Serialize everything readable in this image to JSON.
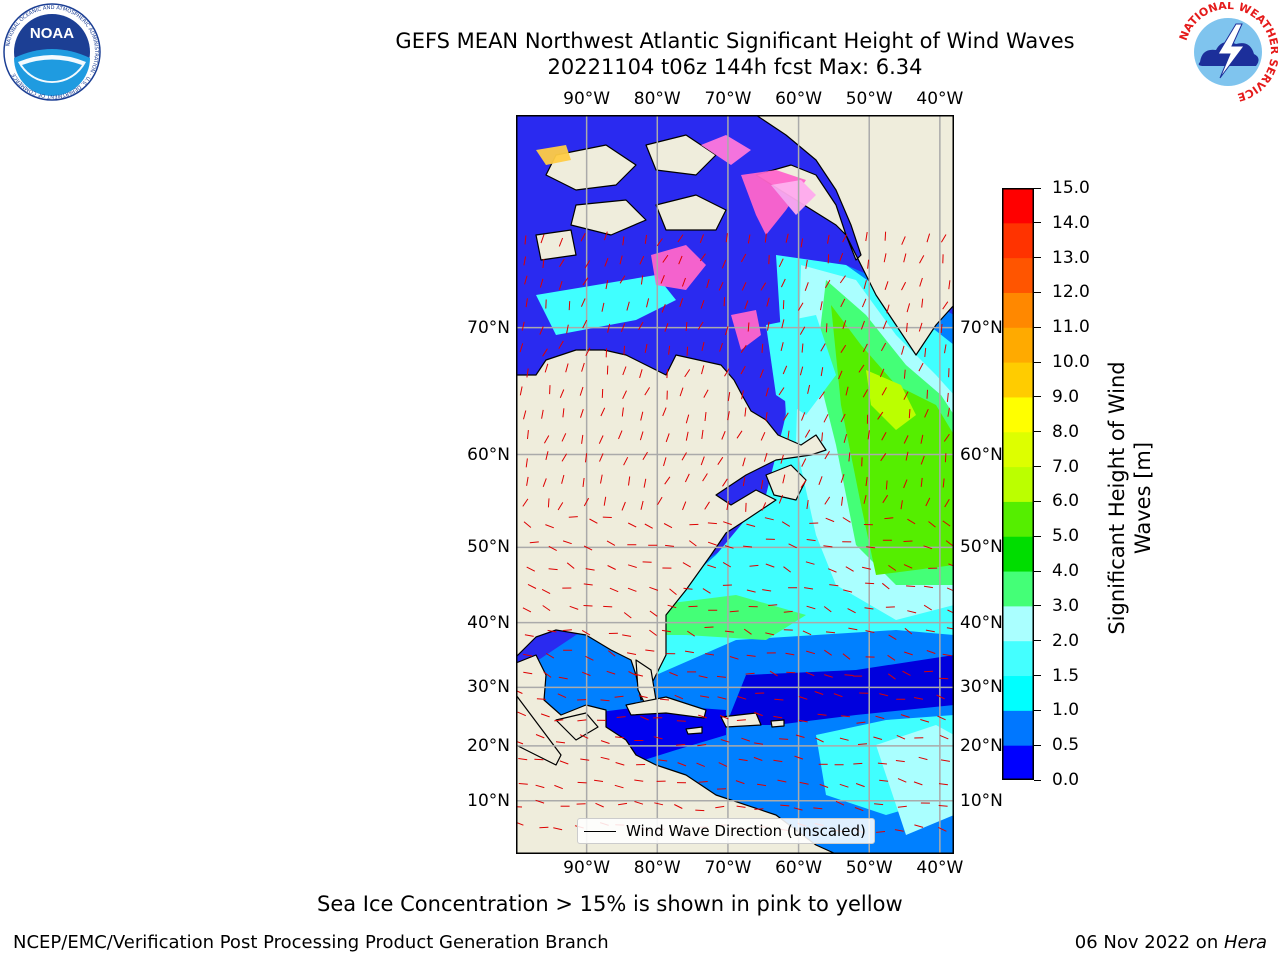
{
  "title": {
    "line1": "GEFS MEAN Northwest Atlantic Significant Height of Wind Waves",
    "line2": "20221104 t06z 144h fcst   Max: 6.34"
  },
  "logos": {
    "left": {
      "text": "NOAA",
      "ring_text": "NATIONAL OCEANIC AND ATMOSPHERIC ADMINISTRATION · U.S. DEPARTMENT OF COMMERCE"
    },
    "right": {
      "ring_text": "NATIONAL WEATHER SERVICE"
    }
  },
  "map": {
    "lon_labels": [
      "90°W",
      "80°W",
      "70°W",
      "60°W",
      "50°W",
      "40°W"
    ],
    "lon_values": [
      -90,
      -80,
      -70,
      -60,
      -50,
      -40
    ],
    "lat_labels": [
      "70°N",
      "60°N",
      "50°N",
      "40°N",
      "30°N",
      "20°N",
      "10°N"
    ],
    "lat_values": [
      70,
      60,
      50,
      40,
      30,
      20,
      10
    ],
    "lon_range": [
      -100,
      -38
    ],
    "lat_range": [
      0,
      80
    ],
    "gridlines": true,
    "projection": "mercator",
    "colors": {
      "land": "#efeddc",
      "coast": "#000000",
      "grid": "#aaaaaa",
      "vector": "#dd0000"
    }
  },
  "legend": {
    "label": "Wind Wave Direction (unscaled)",
    "placement": "lower-center"
  },
  "colorbar": {
    "label": "Significant Height of Wind Waves [m]",
    "ticks": [
      "0.0",
      "0.5",
      "1.0",
      "1.5",
      "2.0",
      "3.0",
      "4.0",
      "5.0",
      "6.0",
      "7.0",
      "8.0",
      "9.0",
      "10.0",
      "11.0",
      "12.0",
      "13.0",
      "14.0",
      "15.0"
    ],
    "colors": [
      "#0000ff",
      "#0077ff",
      "#00ffff",
      "#44ffff",
      "#aaffff",
      "#44ff77",
      "#00dd00",
      "#55ee00",
      "#bbff00",
      "#ddff00",
      "#ffff00",
      "#ffcc00",
      "#ffaa00",
      "#ff8800",
      "#ff5500",
      "#ff3300",
      "#ff0000"
    ]
  },
  "note": "Sea Ice Concentration > 15% is shown in pink to yellow",
  "footer": {
    "left": "NCEP/EMC/Verification Post Processing Product Generation Branch",
    "right_prefix": "06 Nov 2022 on ",
    "right_host": "Hera"
  }
}
